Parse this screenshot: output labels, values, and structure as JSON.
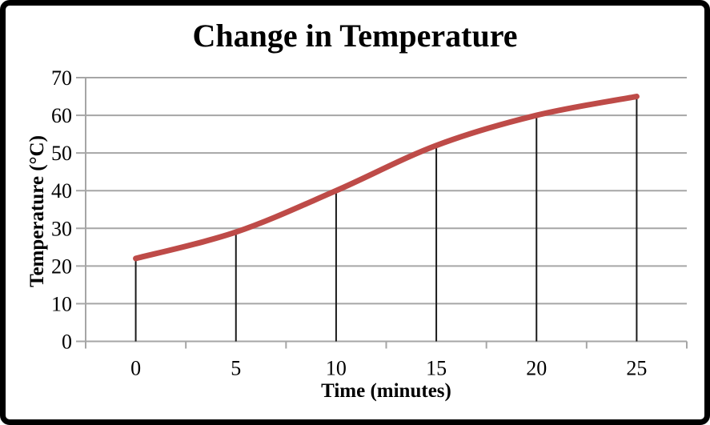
{
  "chart_data": {
    "type": "line",
    "title": "Change in Temperature",
    "xlabel": "Time (minutes)",
    "ylabel": "Temperature (°C)",
    "categories": [
      "0",
      "5",
      "10",
      "15",
      "20",
      "25"
    ],
    "series": [
      {
        "name": "Temperature",
        "values": [
          22,
          29,
          40,
          52,
          60,
          65
        ]
      }
    ],
    "ylim": [
      0,
      70
    ],
    "y_ticks": [
      0,
      10,
      20,
      30,
      40,
      50,
      60,
      70
    ],
    "grid": "horizontal",
    "legend_position": "none",
    "smoothed": true,
    "drop_lines": true,
    "colors": {
      "line": "#BE4B48",
      "grid": "#A6A6A6",
      "axis": "#A6A6A6",
      "drop_line": "#1A1A1A",
      "text": "#000000",
      "border": "#000000",
      "background": "#FFFFFF"
    }
  }
}
